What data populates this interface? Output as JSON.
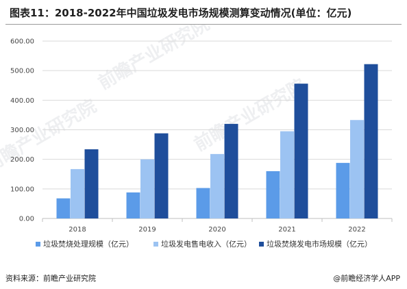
{
  "header": {
    "title": "图表11：2018-2022年中国垃圾发电市场规模测算变动情况(单位：亿元)"
  },
  "footer": {
    "source": "资料来源：前瞻产业研究院",
    "brand": "@前瞻经济学人APP"
  },
  "watermark_text": "前瞻产业研究院",
  "colors": {
    "series1": "#5b9be8",
    "series2": "#9cc3f2",
    "series3": "#1f4e9b",
    "grid": "#d9d9d9",
    "axis": "#bfbfbf"
  },
  "chart_data": {
    "type": "bar",
    "categories": [
      "2018",
      "2019",
      "2020",
      "2021",
      "2022"
    ],
    "series": [
      {
        "name": "垃圾焚烧处理规模（亿元）",
        "values": [
          68,
          88,
          103,
          160,
          188
        ]
      },
      {
        "name": "垃圾发电售电收入（亿元）",
        "values": [
          167,
          200,
          218,
          295,
          333
        ]
      },
      {
        "name": "垃圾焚烧发电市场规模（亿元）",
        "values": [
          234,
          288,
          320,
          456,
          522
        ]
      }
    ],
    "ylim": [
      0,
      600
    ],
    "yticks": [
      "0.00",
      "100.00",
      "200.00",
      "300.00",
      "400.00",
      "500.00",
      "600.00"
    ],
    "ytick_values": [
      0,
      100,
      200,
      300,
      400,
      500,
      600
    ],
    "grid": true,
    "legend_position": "bottom"
  }
}
